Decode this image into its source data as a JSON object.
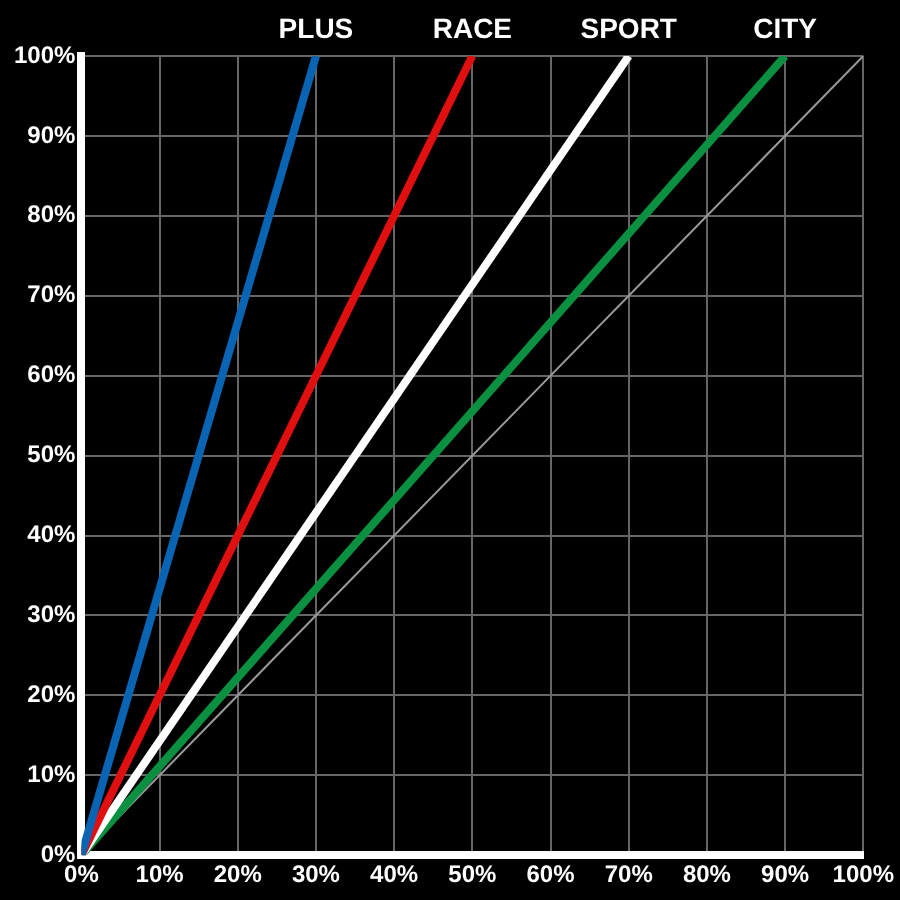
{
  "chart_data": {
    "type": "line",
    "xlim": [
      0,
      100
    ],
    "ylim": [
      0,
      100
    ],
    "xticks": [
      {
        "value": 0,
        "label": "0%"
      },
      {
        "value": 10,
        "label": "10%"
      },
      {
        "value": 20,
        "label": "20%"
      },
      {
        "value": 30,
        "label": "30%"
      },
      {
        "value": 40,
        "label": "40%"
      },
      {
        "value": 50,
        "label": "50%"
      },
      {
        "value": 60,
        "label": "60%"
      },
      {
        "value": 70,
        "label": "70%"
      },
      {
        "value": 80,
        "label": "80%"
      },
      {
        "value": 90,
        "label": "90%"
      },
      {
        "value": 100,
        "label": "100%"
      }
    ],
    "yticks": [
      {
        "value": 0,
        "label": "0%"
      },
      {
        "value": 10,
        "label": "10%"
      },
      {
        "value": 20,
        "label": "20%"
      },
      {
        "value": 30,
        "label": "30%"
      },
      {
        "value": 40,
        "label": "40%"
      },
      {
        "value": 50,
        "label": "50%"
      },
      {
        "value": 60,
        "label": "60%"
      },
      {
        "value": 70,
        "label": "70%"
      },
      {
        "value": 80,
        "label": "80%"
      },
      {
        "value": 90,
        "label": "90%"
      },
      {
        "value": 100,
        "label": "100%"
      }
    ],
    "grid": true,
    "legend": false,
    "marker": "none",
    "series": [
      {
        "name": "PLUS",
        "color": "#0a64b4",
        "x": [
          0,
          30
        ],
        "values": [
          0,
          100
        ]
      },
      {
        "name": "RACE",
        "color": "#e01010",
        "x": [
          0,
          50
        ],
        "values": [
          0,
          100
        ]
      },
      {
        "name": "SPORT",
        "color": "#ffffff",
        "x": [
          0,
          70
        ],
        "values": [
          0,
          100
        ]
      },
      {
        "name": "CITY",
        "color": "#0a9040",
        "x": [
          0,
          90
        ],
        "values": [
          0,
          100
        ]
      },
      {
        "color": "#9a9a9a",
        "x": [
          0,
          100
        ],
        "values": [
          0,
          100
        ]
      }
    ]
  }
}
